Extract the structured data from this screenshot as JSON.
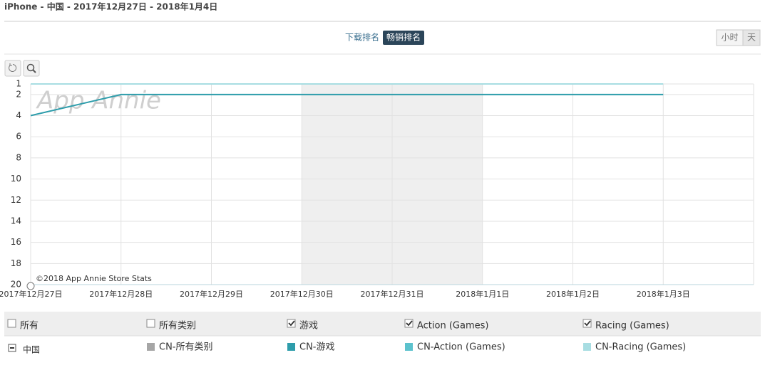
{
  "header": {
    "title": "iPhone - 中国 - 2017年12月27日 - 2018年1月4日"
  },
  "rank_toggle": {
    "options": [
      "下载排名",
      "畅销排名"
    ],
    "active": 1
  },
  "granularity": {
    "options": [
      "小时",
      "天"
    ]
  },
  "chart_data": {
    "type": "line",
    "watermark": "App Annie",
    "credit": "©2018 App Annie Store Stats",
    "categories": [
      "2017年12月27日",
      "2017年12月28日",
      "2017年12月29日",
      "2017年12月30日",
      "2017年12月31日",
      "2018年1月1日",
      "2018年1月2日",
      "2018年1月3日",
      null
    ],
    "ylim": [
      1,
      20
    ],
    "y_reversed": true,
    "yticks": [
      1,
      2,
      4,
      6,
      8,
      10,
      12,
      14,
      16,
      18,
      20
    ],
    "grid": true,
    "series": [
      {
        "name": "CN-所有类别",
        "color": "#a6a6a6",
        "values": [
          null,
          null,
          null,
          null,
          null,
          null,
          null,
          null,
          null
        ]
      },
      {
        "name": "CN-游戏",
        "color": "#2e9dab",
        "values": [
          4,
          2,
          2,
          2,
          2,
          2,
          2,
          2,
          null
        ]
      },
      {
        "name": "CN-Action (Games)",
        "color": "#5cc2cd",
        "values": [
          null,
          null,
          null,
          null,
          null,
          null,
          null,
          null,
          null
        ]
      },
      {
        "name": "CN-Racing (Games)",
        "color": "#a8dde2",
        "values": [
          1,
          1,
          1,
          1,
          1,
          1,
          1,
          1,
          null
        ]
      }
    ]
  },
  "filters": [
    {
      "label": "所有",
      "checked": false
    },
    {
      "label": "所有类别",
      "checked": false
    },
    {
      "label": "游戏",
      "checked": true
    },
    {
      "label": "Action (Games)",
      "checked": true
    },
    {
      "label": "Racing (Games)",
      "checked": true
    }
  ],
  "region": "中国"
}
